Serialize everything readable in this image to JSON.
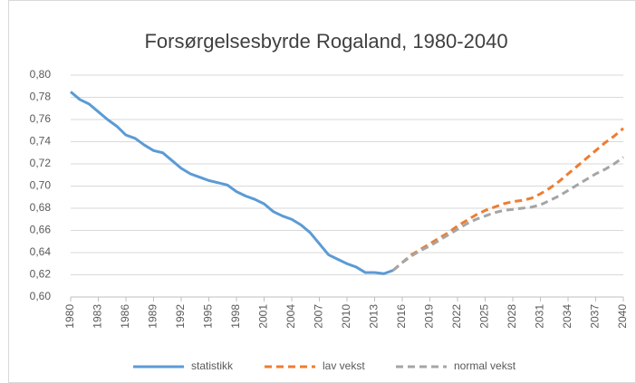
{
  "chart_data": {
    "type": "line",
    "title": "Forsørgelsesbyrde Rogaland, 1980-2040",
    "x": [
      1980,
      1981,
      1982,
      1983,
      1984,
      1985,
      1986,
      1987,
      1988,
      1989,
      1990,
      1991,
      1992,
      1993,
      1994,
      1995,
      1996,
      1997,
      1998,
      1999,
      2000,
      2001,
      2002,
      2003,
      2004,
      2005,
      2006,
      2007,
      2008,
      2009,
      2010,
      2011,
      2012,
      2013,
      2014,
      2015,
      2016,
      2017,
      2018,
      2019,
      2020,
      2021,
      2022,
      2023,
      2024,
      2025,
      2026,
      2027,
      2028,
      2029,
      2030,
      2031,
      2032,
      2033,
      2034,
      2035,
      2036,
      2037,
      2038,
      2039,
      2040
    ],
    "xlim": [
      1980,
      2040
    ],
    "xticks": [
      1980,
      1983,
      1986,
      1989,
      1992,
      1995,
      1998,
      2001,
      2004,
      2007,
      2010,
      2013,
      2016,
      2019,
      2022,
      2025,
      2028,
      2031,
      2034,
      2037,
      2040
    ],
    "ylim": [
      0.6,
      0.8
    ],
    "yticks": [
      {
        "value": 0.6,
        "label": "0,60"
      },
      {
        "value": 0.62,
        "label": "0,62"
      },
      {
        "value": 0.64,
        "label": "0,64"
      },
      {
        "value": 0.66,
        "label": "0,66"
      },
      {
        "value": 0.68,
        "label": "0,68"
      },
      {
        "value": 0.7,
        "label": "0,70"
      },
      {
        "value": 0.72,
        "label": "0,72"
      },
      {
        "value": 0.74,
        "label": "0,74"
      },
      {
        "value": 0.76,
        "label": "0,76"
      },
      {
        "value": 0.78,
        "label": "0,78"
      },
      {
        "value": 0.8,
        "label": "0,80"
      }
    ],
    "grid": true,
    "legend": "bottom",
    "series": [
      {
        "name": "statistikk",
        "color": "#5b9bd5",
        "dashed": false,
        "values": [
          0.785,
          0.778,
          0.774,
          0.767,
          0.76,
          0.754,
          0.746,
          0.743,
          0.737,
          0.732,
          0.73,
          0.723,
          0.716,
          0.711,
          0.708,
          0.705,
          0.703,
          0.701,
          0.695,
          0.691,
          0.688,
          0.684,
          0.677,
          0.673,
          0.67,
          0.665,
          0.658,
          0.648,
          0.638,
          0.634,
          0.63,
          0.627,
          0.622,
          0.622,
          0.621,
          0.624,
          null,
          null,
          null,
          null,
          null,
          null,
          null,
          null,
          null,
          null,
          null,
          null,
          null,
          null,
          null,
          null,
          null,
          null,
          null,
          null,
          null,
          null,
          null,
          null,
          null
        ]
      },
      {
        "name": "lav vekst",
        "color": "#ed7d31",
        "dashed": true,
        "values": [
          null,
          null,
          null,
          null,
          null,
          null,
          null,
          null,
          null,
          null,
          null,
          null,
          null,
          null,
          null,
          null,
          null,
          null,
          null,
          null,
          null,
          null,
          null,
          null,
          null,
          null,
          null,
          null,
          null,
          null,
          null,
          null,
          null,
          null,
          null,
          0.624,
          0.631,
          0.638,
          0.643,
          0.648,
          0.653,
          0.658,
          0.664,
          0.669,
          0.674,
          0.678,
          0.681,
          0.684,
          0.686,
          0.687,
          0.689,
          0.693,
          0.698,
          0.704,
          0.711,
          0.718,
          0.725,
          0.732,
          0.739,
          0.745,
          0.752
        ]
      },
      {
        "name": "normal vekst",
        "color": "#a5a5a5",
        "dashed": true,
        "values": [
          null,
          null,
          null,
          null,
          null,
          null,
          null,
          null,
          null,
          null,
          null,
          null,
          null,
          null,
          null,
          null,
          null,
          null,
          null,
          null,
          null,
          null,
          null,
          null,
          null,
          null,
          null,
          null,
          null,
          null,
          null,
          null,
          null,
          null,
          null,
          0.624,
          0.631,
          0.637,
          0.642,
          0.646,
          0.651,
          0.656,
          0.661,
          0.666,
          0.67,
          0.673,
          0.676,
          0.678,
          0.679,
          0.68,
          0.681,
          0.683,
          0.687,
          0.691,
          0.696,
          0.701,
          0.706,
          0.711,
          0.715,
          0.72,
          0.726
        ]
      }
    ]
  }
}
